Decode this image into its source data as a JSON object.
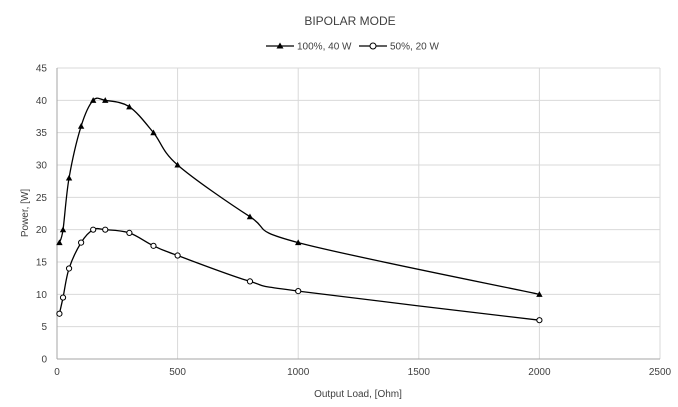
{
  "chart_data": {
    "type": "line",
    "title": "BIPOLAR MODE",
    "xlabel": "Output Load, [Ohm]",
    "ylabel": "Power, [W]",
    "xlim": [
      0,
      2500
    ],
    "ylim": [
      0,
      45
    ],
    "xticks": [
      0,
      500,
      1000,
      1500,
      2000,
      2500
    ],
    "yticks": [
      0,
      5,
      10,
      15,
      20,
      25,
      30,
      35,
      40,
      45
    ],
    "grid": true,
    "legend_position": "top",
    "series": [
      {
        "name": "100%, 40 W",
        "marker": "triangle",
        "color": "#000000",
        "x": [
          10,
          25,
          50,
          100,
          150,
          200,
          300,
          400,
          500,
          800,
          1000,
          2000
        ],
        "y": [
          18,
          20,
          28,
          36,
          40,
          40,
          39,
          35,
          30,
          22,
          18,
          10
        ]
      },
      {
        "name": "50%, 20 W",
        "marker": "circle",
        "color": "#000000",
        "x": [
          10,
          25,
          50,
          100,
          150,
          200,
          300,
          400,
          500,
          800,
          1000,
          2000
        ],
        "y": [
          7,
          9.5,
          14,
          18,
          20,
          20,
          19.5,
          17.5,
          16,
          12,
          10.5,
          6
        ]
      }
    ]
  }
}
